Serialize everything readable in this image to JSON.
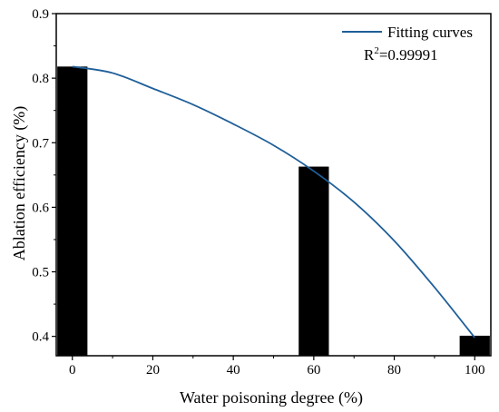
{
  "chart_data": {
    "type": "bar",
    "xlabel": "Water poisoning degree (%)",
    "ylabel": "Ablation efficiency (%)",
    "xlim": [
      -4,
      104
    ],
    "ylim": [
      0.37,
      0.9
    ],
    "x_ticks": [
      0,
      20,
      40,
      60,
      80,
      100
    ],
    "y_ticks": [
      0.4,
      0.5,
      0.6,
      0.7,
      0.8,
      0.9
    ],
    "x_tick_labels": [
      "0",
      "20",
      "40",
      "60",
      "80",
      "100"
    ],
    "y_tick_labels": [
      "0.4",
      "0.5",
      "0.6",
      "0.7",
      "0.8",
      "0.9"
    ],
    "bar_width": 7.5,
    "bar_color": "#000000",
    "bars": {
      "x": [
        0,
        60,
        100
      ],
      "values": [
        0.818,
        0.663,
        0.401
      ]
    },
    "fit_curve": {
      "name": "Fitting curves",
      "color": "#1f5f99",
      "x": [
        0,
        10,
        20,
        30,
        40,
        50,
        60,
        70,
        80,
        90,
        100
      ],
      "y": [
        0.818,
        0.808,
        0.784,
        0.759,
        0.729,
        0.696,
        0.656,
        0.608,
        0.548,
        0.476,
        0.398
      ]
    },
    "legend": {
      "label": "Fitting curves",
      "position": "top-right",
      "r2_base": "R",
      "r2_sup": "2",
      "r2_value": "=0.99991"
    }
  }
}
